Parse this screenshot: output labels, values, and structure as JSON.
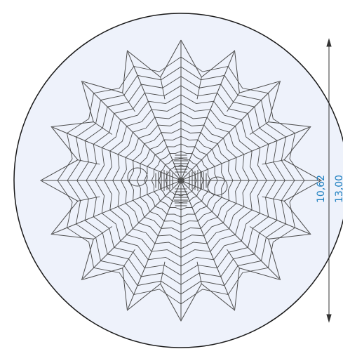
{
  "colors": {
    "background": "#ffffff",
    "disc_fill": "#eef2fb",
    "disc_stroke": "#1a1a1a",
    "web_stroke": "#4a4a4a",
    "dimension_line": "#333333",
    "dimension_text": "#1d7fc0"
  },
  "reticle": {
    "name": "spider-web-reticle",
    "spoke_count": 16,
    "ring_count": 14,
    "dimensions": {
      "inner_label": "10,62",
      "outer_label": "13,00"
    }
  }
}
